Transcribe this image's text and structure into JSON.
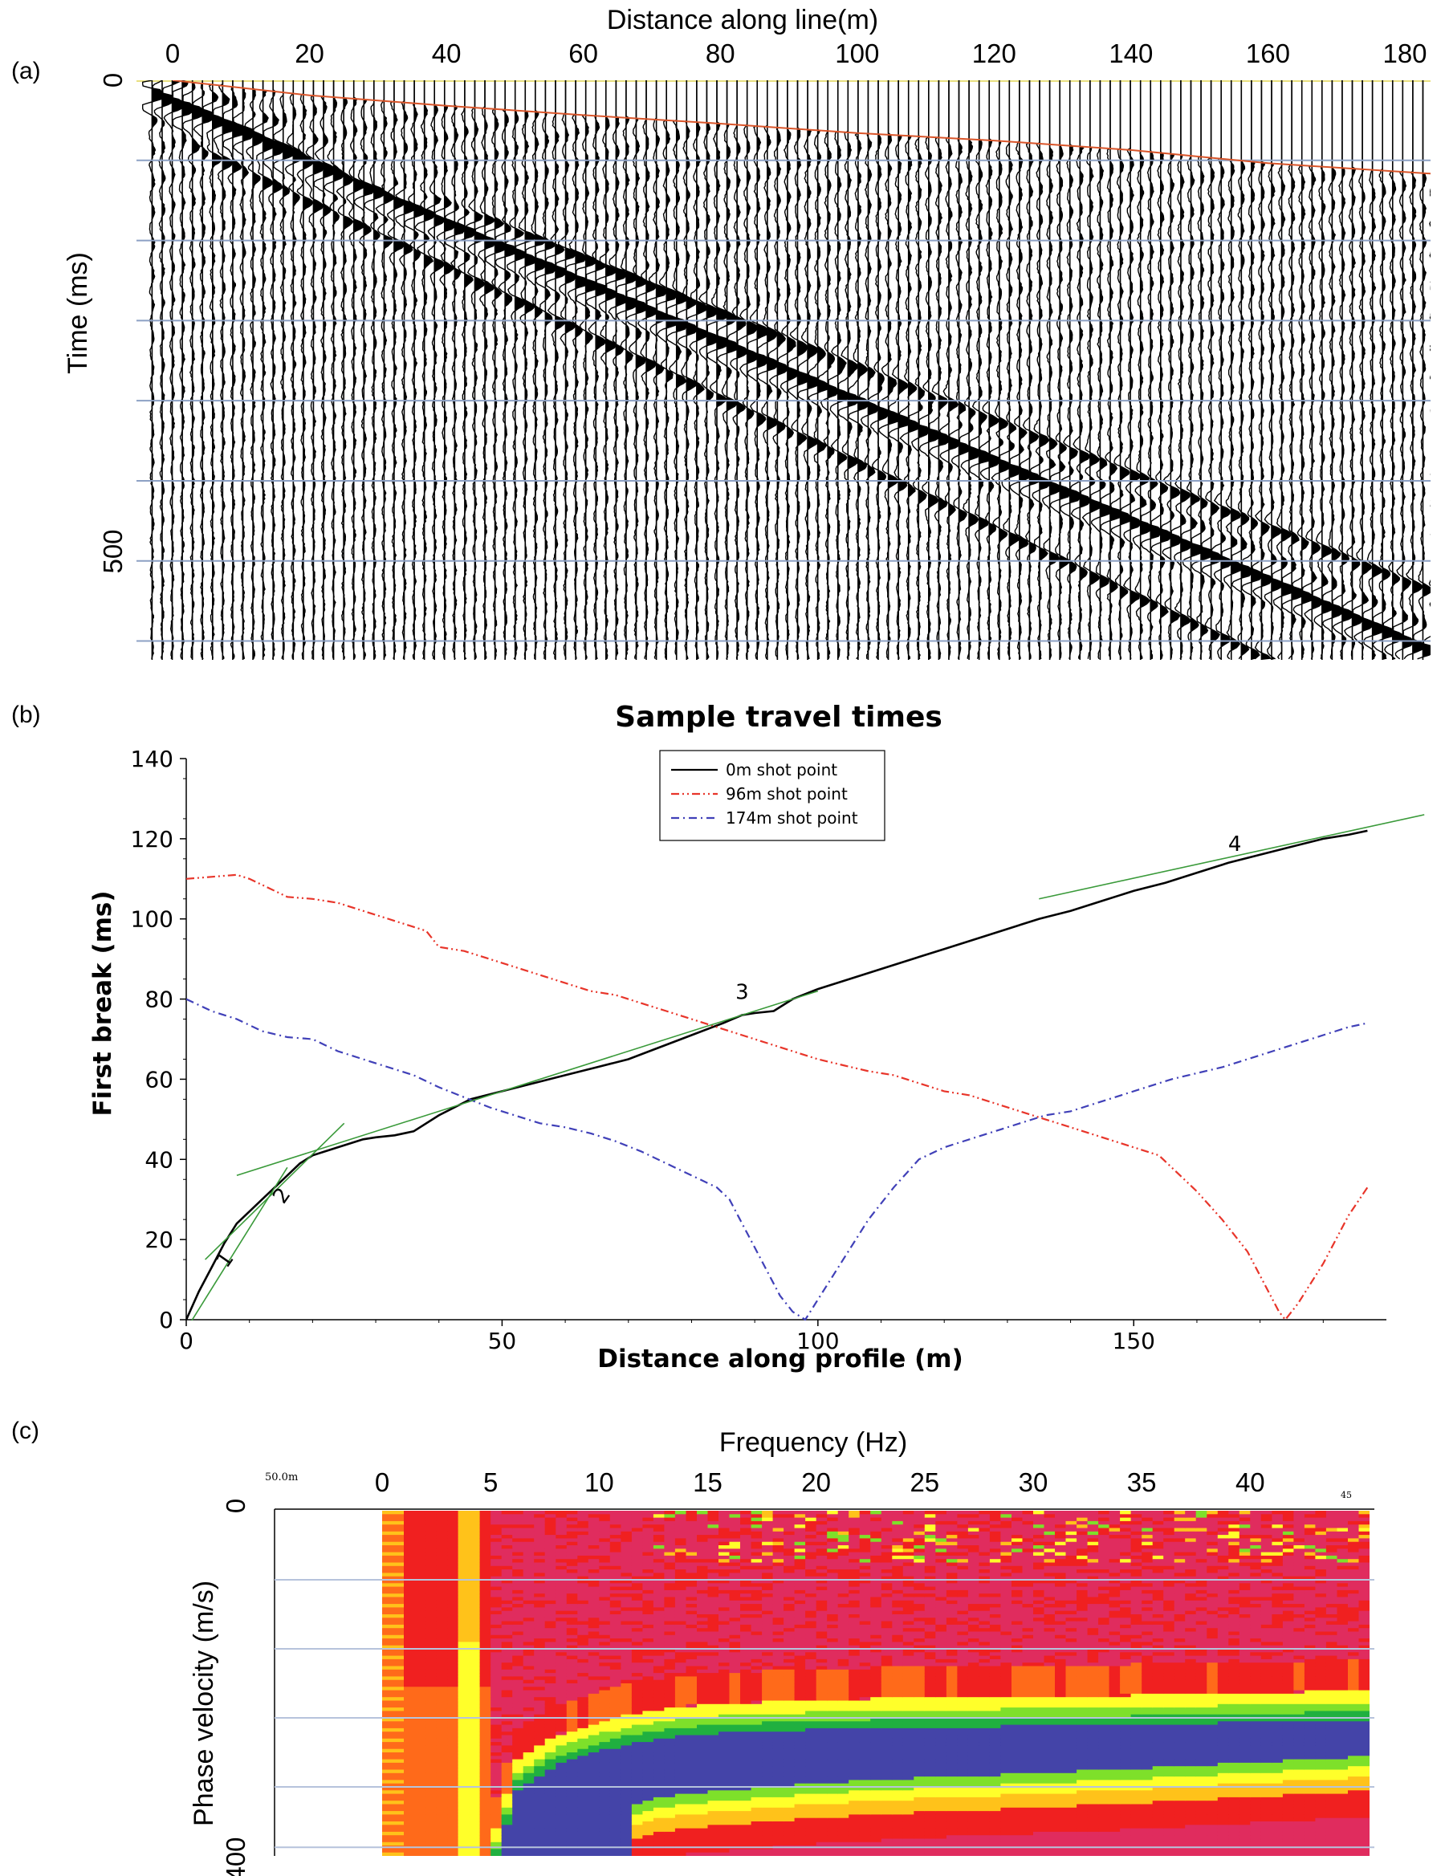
{
  "figure": {
    "panel_a_label": "(a)",
    "panel_b_label": "(b)",
    "panel_c_label": "(c)"
  },
  "chart_data": [
    {
      "panel": "a",
      "type": "heatmap",
      "title": "",
      "xlabel": "Distance along line(m)",
      "ylabel": "Time (ms)",
      "x_ticks": [
        0,
        20,
        40,
        60,
        80,
        100,
        120,
        140,
        160,
        180
      ],
      "y_ticks": [
        0,
        500
      ],
      "xlim": [
        -5,
        190
      ],
      "ylim": [
        0,
        615
      ],
      "grid_lines_y_ms": [
        0,
        85,
        170,
        255,
        340,
        425,
        510,
        595
      ],
      "first_break_pick": {
        "x": [
          0,
          20,
          40,
          60,
          80,
          100,
          120,
          140,
          160,
          190
        ],
        "y": [
          0,
          16,
          27,
          37,
          46,
          56,
          64,
          74,
          88,
          102
        ]
      },
      "wave_trains": [
        {
          "x_start": 5,
          "t_start": 40,
          "x_end": 185,
          "t_end": 610
        },
        {
          "x_start": 10,
          "t_start": 95,
          "x_end": 160,
          "t_end": 615
        },
        {
          "x_start": 0,
          "t_start": 20,
          "x_end": 190,
          "t_end": 560
        }
      ],
      "colors": {
        "trace": "#000000",
        "grid": "#8ca0c4",
        "pick": "#d9552a"
      }
    },
    {
      "panel": "b",
      "type": "line",
      "title": "Sample travel times",
      "xlabel": "Distance along profile (m)",
      "ylabel": "First break (ms)",
      "xlim": [
        0,
        190
      ],
      "ylim": [
        0,
        140
      ],
      "x_ticks": [
        0,
        50,
        100,
        150
      ],
      "y_ticks": [
        0,
        20,
        40,
        60,
        80,
        100,
        120,
        140
      ],
      "legend_position": "top-center",
      "series": [
        {
          "name": "0m shot point",
          "color": "#000000",
          "style": "solid",
          "x": [
            0,
            2,
            4,
            6,
            8,
            10,
            12,
            14,
            16,
            18,
            20,
            22,
            24,
            26,
            28,
            30,
            33,
            36,
            40,
            45,
            50,
            55,
            60,
            65,
            70,
            75,
            80,
            85,
            88,
            90,
            93,
            96,
            100,
            105,
            110,
            115,
            120,
            125,
            130,
            135,
            140,
            145,
            150,
            155,
            160,
            165,
            170,
            175,
            180,
            184,
            187
          ],
          "y": [
            0,
            7,
            13,
            19,
            24,
            27,
            30,
            33,
            36,
            39,
            41,
            42,
            43,
            44,
            45,
            45.5,
            46,
            47,
            51,
            55,
            57,
            59,
            61,
            63,
            65,
            68,
            71,
            74,
            76,
            76.5,
            77,
            80,
            82.5,
            85,
            87.5,
            90,
            92.5,
            95,
            97.5,
            100,
            102,
            104.5,
            107,
            109,
            111.5,
            114,
            116,
            118,
            120,
            121,
            122
          ]
        },
        {
          "name": "96m shot point",
          "color": "#e8352a",
          "style": "dash-dot-dot",
          "x": [
            0,
            4,
            8,
            10,
            14,
            16,
            20,
            24,
            28,
            30,
            34,
            36,
            38,
            40,
            44,
            48,
            52,
            56,
            60,
            64,
            68,
            72,
            76,
            80,
            84,
            88,
            92,
            96,
            100,
            104,
            108,
            112,
            116,
            120,
            124,
            128,
            132,
            136,
            140,
            144,
            148,
            152,
            154,
            156,
            160,
            164,
            168,
            171,
            173,
            174,
            176,
            180,
            184,
            187
          ],
          "y": [
            110,
            110.5,
            111,
            110,
            107,
            105.5,
            105,
            104,
            102,
            101,
            99,
            98,
            97,
            93,
            92,
            90,
            88,
            86,
            84,
            82,
            81,
            79,
            77,
            75,
            73,
            71,
            69,
            67,
            65,
            63.5,
            62,
            61,
            59,
            57,
            56,
            54,
            52,
            50,
            48,
            46,
            44,
            42,
            41,
            38,
            32,
            25,
            17,
            8,
            2,
            0,
            4,
            14,
            26,
            33
          ]
        },
        {
          "name": "174m shot point",
          "color": "#4040b8",
          "style": "dash-dot",
          "x": [
            0,
            4,
            8,
            12,
            16,
            20,
            24,
            28,
            32,
            36,
            40,
            44,
            48,
            52,
            56,
            60,
            64,
            68,
            72,
            76,
            80,
            84,
            86,
            88,
            90,
            92,
            94,
            96,
            98,
            100,
            104,
            108,
            112,
            116,
            120,
            124,
            128,
            132,
            136,
            140,
            144,
            148,
            152,
            156,
            160,
            164,
            168,
            172,
            176,
            180,
            184,
            187
          ],
          "y": [
            80,
            77,
            75,
            72,
            70.5,
            70,
            67,
            65,
            63,
            61,
            58,
            55.5,
            53,
            51,
            49,
            48,
            46.5,
            44.5,
            42,
            39,
            36,
            33,
            30,
            24,
            18,
            12,
            6,
            2,
            0,
            5,
            15,
            25,
            33,
            40,
            43,
            45,
            47,
            49,
            51,
            52,
            54,
            56,
            58,
            60,
            61.5,
            63,
            65,
            67,
            69,
            71,
            73,
            74
          ]
        }
      ],
      "fit_lines": [
        {
          "label": "1",
          "x": [
            -3,
            16
          ],
          "y": [
            -10,
            38
          ]
        },
        {
          "label": "2",
          "x": [
            3,
            25
          ],
          "y": [
            15,
            49
          ]
        },
        {
          "label": "3",
          "x": [
            8,
            100
          ],
          "y": [
            36,
            82
          ]
        },
        {
          "label": "4",
          "x": [
            135,
            196
          ],
          "y": [
            105,
            126
          ]
        }
      ],
      "segment_labels": [
        {
          "text": "1",
          "x": 7,
          "y": 14
        },
        {
          "text": "2",
          "x": 16,
          "y": 30
        },
        {
          "text": "3",
          "x": 88,
          "y": 80
        },
        {
          "text": "4",
          "x": 166,
          "y": 117
        }
      ]
    },
    {
      "panel": "c",
      "type": "heatmap",
      "title": "",
      "xlabel": "Frequency (Hz)",
      "ylabel": "Phase velocity (m/s)",
      "x_ticks": [
        0,
        5,
        10,
        15,
        20,
        25,
        30,
        35,
        40
      ],
      "y_ticks": [
        0,
        400
      ],
      "xlim": [
        0,
        45.5
      ],
      "ylim": [
        0,
        400
      ],
      "corner_label_left": "50.0m",
      "corner_label_right": "45",
      "grid_lines_y": [
        0,
        80,
        160,
        240,
        320,
        400
      ],
      "dispersion_curve": {
        "f": [
          5,
          6,
          8,
          10,
          12,
          14,
          16,
          18,
          20,
          22,
          24,
          26,
          28,
          30,
          34,
          38,
          42,
          45
        ],
        "v": [
          400,
          320,
          290,
          275,
          264,
          258,
          255,
          253,
          251,
          250,
          249,
          248,
          248,
          247,
          246,
          244,
          242,
          240
        ]
      },
      "colorscale": [
        "#e02c5e",
        "#f02020",
        "#ff6a1a",
        "#ffc21a",
        "#ffff2a",
        "#7ee02a",
        "#20b040",
        "#4444a8"
      ]
    }
  ]
}
